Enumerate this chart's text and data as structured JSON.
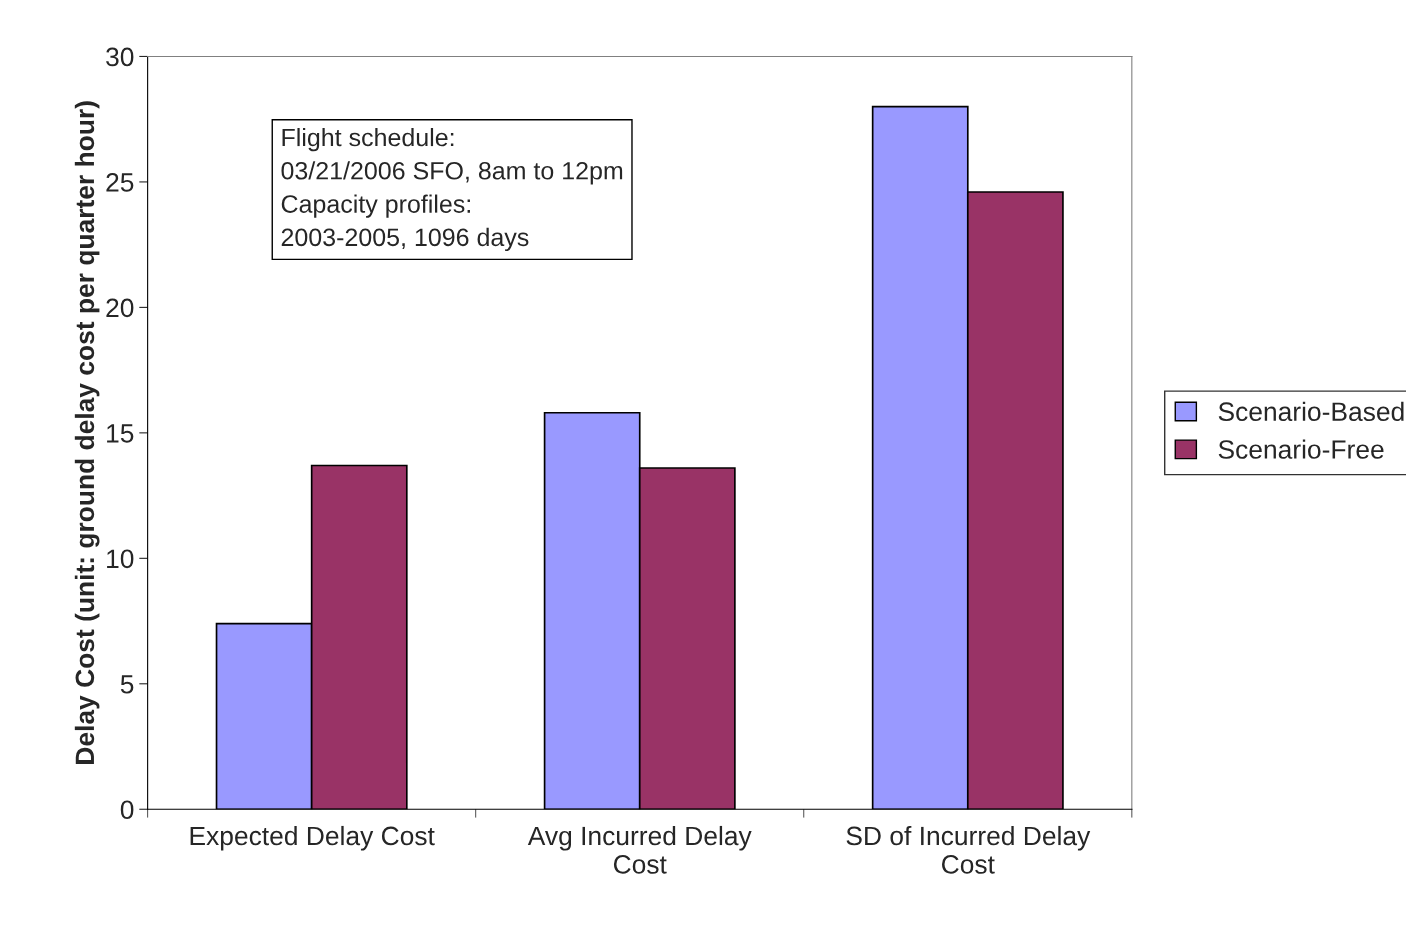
{
  "chart_data": {
    "type": "bar",
    "ylabel": "Delay Cost (unit: ground delay cost per quarter hour)",
    "categories": [
      "Expected Delay Cost",
      "Avg Incurred Delay\nCost",
      "SD of Incurred Delay\nCost"
    ],
    "series": [
      {
        "name": "Scenario-Based",
        "color": "#9999ff",
        "values": [
          7.4,
          15.8,
          28.0
        ]
      },
      {
        "name": "Scenario-Free",
        "color": "#993366",
        "values": [
          13.7,
          13.6,
          24.6
        ]
      }
    ],
    "ylim": [
      0,
      30
    ],
    "yticks": [
      0,
      5,
      10,
      15,
      20,
      25,
      30
    ],
    "grid": false,
    "legend": "right",
    "annotations": [
      "Flight schedule:\n03/21/2006 SFO, 8am to 12pm\nCapacity profiles:\n2003-2005, 1096 days"
    ]
  }
}
